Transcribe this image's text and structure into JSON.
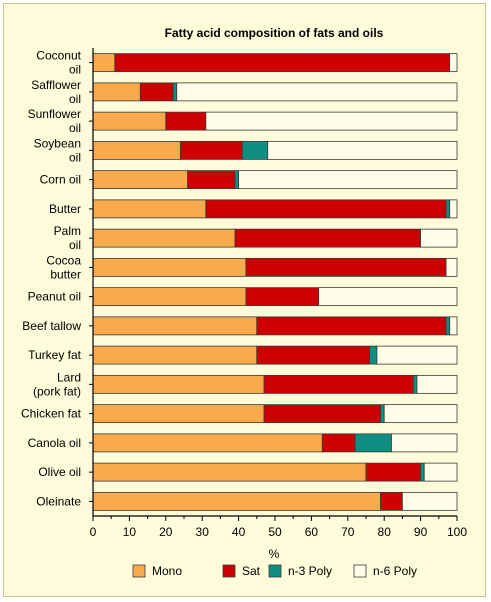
{
  "chart_data": {
    "type": "bar",
    "orientation": "horizontal",
    "stacked": true,
    "title": "Fatty acid composition of fats and oils",
    "xlabel": "%",
    "ylabel": "",
    "xlim": [
      0,
      100
    ],
    "xticks": [
      0,
      10,
      20,
      30,
      40,
      50,
      60,
      70,
      80,
      90,
      100
    ],
    "grid": false,
    "legend_position": "bottom",
    "categories": [
      [
        "Coconut",
        "oil"
      ],
      [
        "Safflower",
        "oil"
      ],
      [
        "Sunflower",
        "oil"
      ],
      [
        "Soybean",
        "oil"
      ],
      [
        "Corn oil"
      ],
      [
        "Butter"
      ],
      [
        "Palm",
        "oil"
      ],
      [
        "Cocoa",
        "butter"
      ],
      [
        "Peanut oil"
      ],
      [
        "Beef tallow"
      ],
      [
        "Turkey fat"
      ],
      [
        "Lard",
        "(pork fat)"
      ],
      [
        "Chicken fat"
      ],
      [
        "Canola oil"
      ],
      [
        "Olive oil"
      ],
      [
        "Oleinate"
      ]
    ],
    "series": [
      {
        "name": "Mono",
        "color": "#f9aa4c",
        "values": [
          6,
          13,
          20,
          24,
          26,
          31,
          39,
          42,
          42,
          45,
          45,
          47,
          47,
          63,
          75,
          79
        ]
      },
      {
        "name": "Sat",
        "color": "#cc0000",
        "values": [
          92,
          9,
          11,
          17,
          13,
          66,
          51,
          55,
          20,
          52,
          31,
          41,
          32,
          9,
          15,
          6
        ]
      },
      {
        "name": "n-3 Poly",
        "color": "#0d8f84",
        "values": [
          0,
          1,
          0,
          7,
          1,
          1,
          0,
          0,
          0,
          1,
          2,
          1,
          1,
          10,
          1,
          0
        ]
      },
      {
        "name": "n-6 Poly",
        "color": "#fffde8",
        "values": [
          2,
          77,
          69,
          52,
          60,
          2,
          10,
          3,
          38,
          2,
          22,
          11,
          20,
          18,
          9,
          15
        ]
      }
    ]
  }
}
